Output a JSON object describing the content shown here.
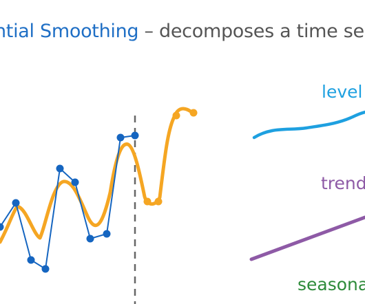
{
  "title": {
    "accent_text": "ntial Smoothing",
    "rest_text": " – decomposes a time ser"
  },
  "components": {
    "level_label": "level",
    "trend_label": "trend",
    "seasonal_label": "seasonal"
  },
  "colors": {
    "title_accent": "#1f6fc5",
    "title_text": "#555555",
    "observed": "#1565c0",
    "smoothed": "#f5a623",
    "level": "#1ea0e0",
    "trend": "#8e5aa6",
    "seasonal": "#2e8b3a",
    "forecast_divider": "#666666"
  }
}
